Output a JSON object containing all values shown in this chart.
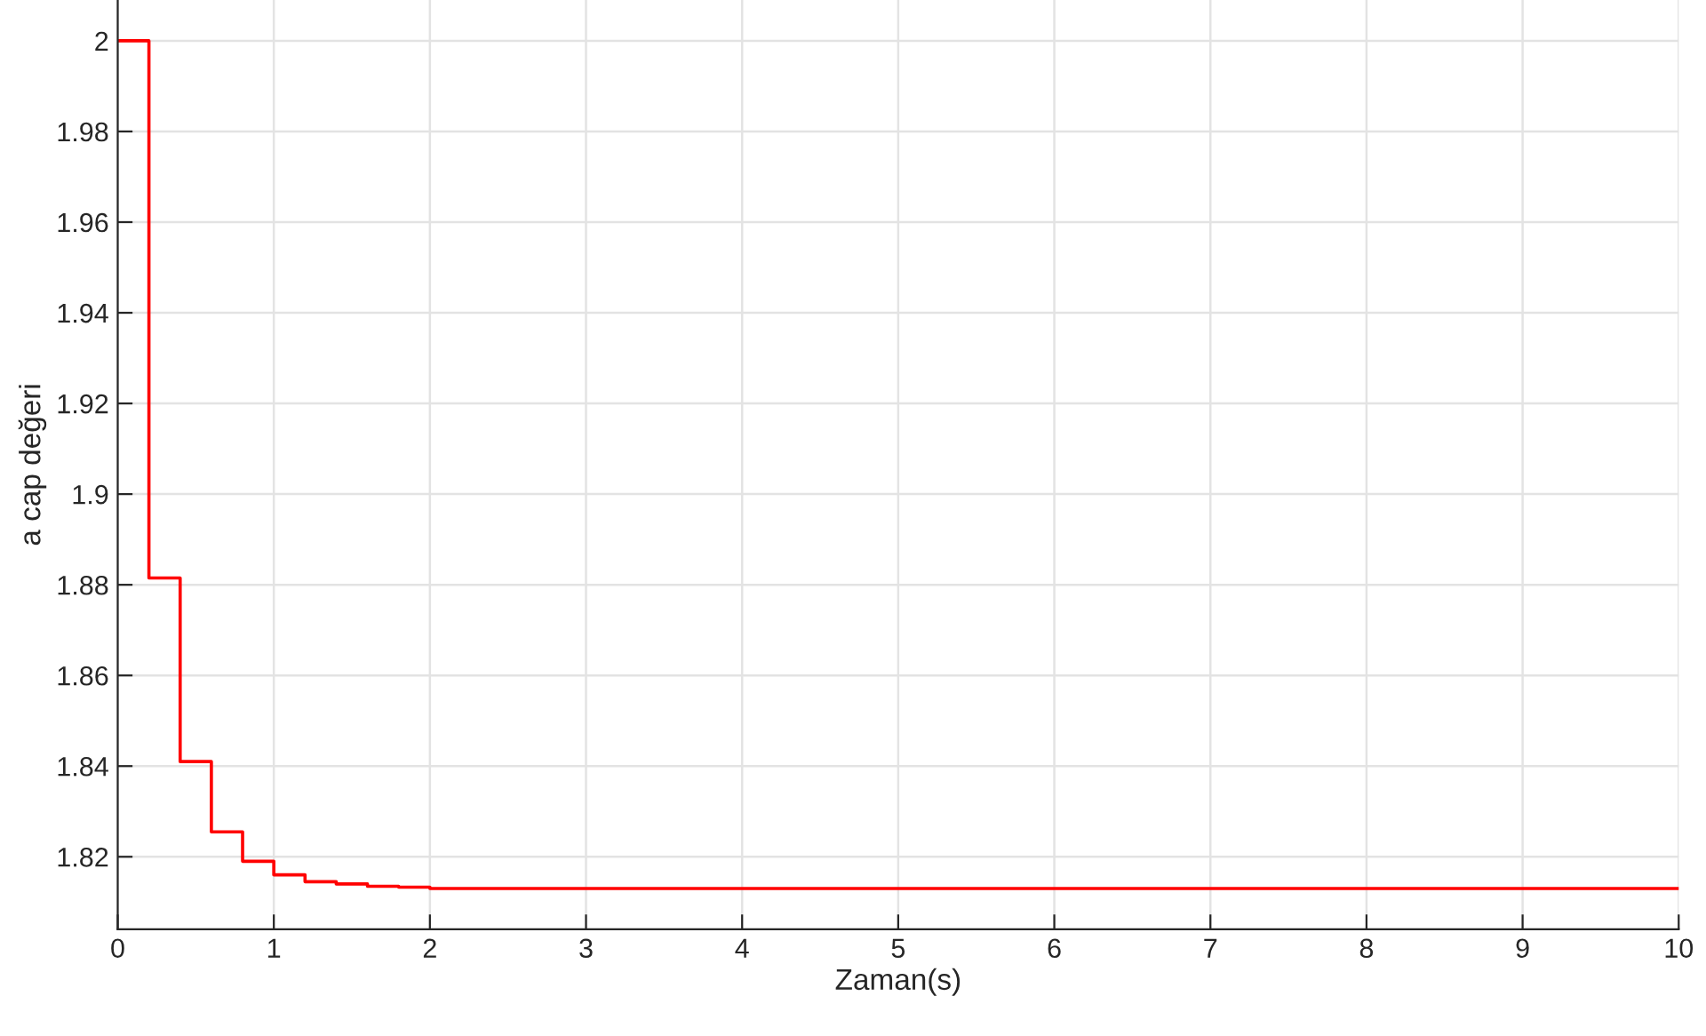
{
  "chart_data": {
    "type": "step",
    "xlabel": "Zaman(s)",
    "ylabel": "a cap değeri",
    "x": [
      0,
      0.2,
      0.4,
      0.6,
      0.8,
      1.0,
      1.2,
      1.4,
      1.6,
      1.8,
      2.0,
      10
    ],
    "series": [
      {
        "color": "#ff0000",
        "values": [
          2.0,
          1.8815,
          1.841,
          1.8255,
          1.819,
          1.816,
          1.8145,
          1.814,
          1.8135,
          1.8133,
          1.813,
          1.813
        ]
      }
    ],
    "xlim": [
      0,
      10
    ],
    "xticks": [
      0,
      1,
      2,
      3,
      4,
      5,
      6,
      7,
      8,
      9,
      10
    ],
    "ylim": [
      1.804,
      2.009
    ],
    "yticks": [
      1.82,
      1.84,
      1.86,
      1.88,
      1.9,
      1.92,
      1.94,
      1.96,
      1.98,
      2
    ],
    "grid": true,
    "marker": "none",
    "line_style": "solid"
  }
}
